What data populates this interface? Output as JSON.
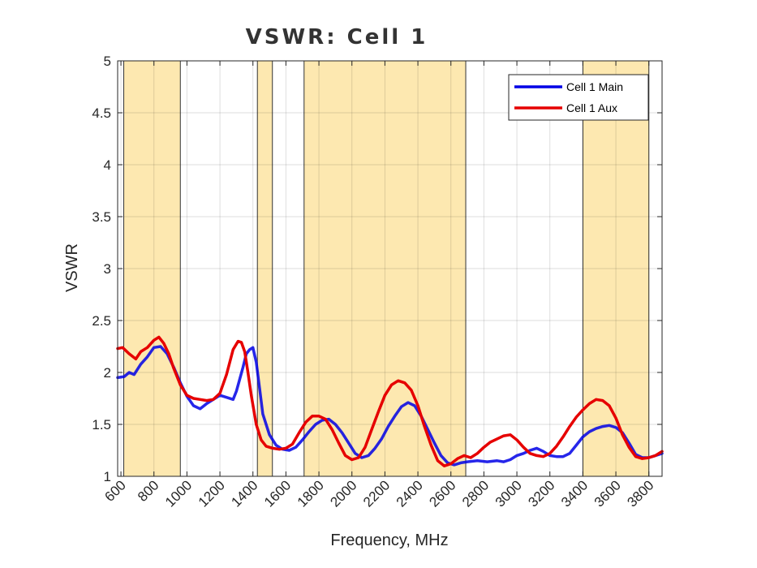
{
  "chart_data": {
    "type": "line",
    "title": "VSWR: Cell 1",
    "xlabel": "Frequency, MHz",
    "ylabel": "VSWR",
    "xlim": [
      580,
      3880
    ],
    "ylim": [
      1,
      5
    ],
    "xticks": [
      600,
      800,
      1000,
      1200,
      1400,
      1600,
      1800,
      2000,
      2200,
      2400,
      2600,
      2800,
      3000,
      3200,
      3400,
      3600,
      3800
    ],
    "yticks": [
      1,
      1.5,
      2,
      2.5,
      3,
      3.5,
      4,
      4.5,
      5
    ],
    "ytick_labels": [
      "1",
      "1.5",
      "2",
      "2.5",
      "3",
      "3.5",
      "4",
      "4.5",
      "5"
    ],
    "grid": true,
    "legend_position": "top-right",
    "bands_mhz": [
      [
        617,
        960
      ],
      [
        1427,
        1518
      ],
      [
        1710,
        2690
      ],
      [
        3400,
        3800
      ]
    ],
    "band_color": "#fde8b0",
    "series": [
      {
        "name": "Cell 1 Main",
        "color": "#0000e6",
        "x": [
          580,
          620,
          650,
          680,
          720,
          760,
          800,
          840,
          880,
          920,
          960,
          1000,
          1040,
          1080,
          1120,
          1160,
          1200,
          1240,
          1280,
          1300,
          1340,
          1360,
          1380,
          1400,
          1420,
          1440,
          1460,
          1500,
          1540,
          1580,
          1620,
          1660,
          1700,
          1740,
          1780,
          1820,
          1860,
          1900,
          1940,
          1980,
          2020,
          2060,
          2100,
          2140,
          2180,
          2220,
          2260,
          2300,
          2340,
          2380,
          2420,
          2460,
          2500,
          2540,
          2580,
          2620,
          2660,
          2700,
          2760,
          2820,
          2880,
          2920,
          2960,
          3000,
          3040,
          3080,
          3120,
          3160,
          3200,
          3240,
          3280,
          3320,
          3360,
          3400,
          3440,
          3480,
          3520,
          3560,
          3600,
          3640,
          3680,
          3720,
          3760,
          3800,
          3840,
          3880
        ],
        "values": [
          1.95,
          1.96,
          2.0,
          1.98,
          2.08,
          2.15,
          2.24,
          2.25,
          2.18,
          2.05,
          1.9,
          1.77,
          1.68,
          1.65,
          1.7,
          1.74,
          1.78,
          1.76,
          1.74,
          1.82,
          2.05,
          2.18,
          2.22,
          2.24,
          2.1,
          1.85,
          1.6,
          1.4,
          1.3,
          1.26,
          1.25,
          1.28,
          1.35,
          1.43,
          1.5,
          1.54,
          1.55,
          1.5,
          1.42,
          1.32,
          1.22,
          1.18,
          1.2,
          1.27,
          1.36,
          1.48,
          1.58,
          1.67,
          1.71,
          1.68,
          1.58,
          1.45,
          1.32,
          1.2,
          1.13,
          1.11,
          1.13,
          1.14,
          1.15,
          1.14,
          1.15,
          1.14,
          1.16,
          1.2,
          1.22,
          1.25,
          1.27,
          1.24,
          1.2,
          1.19,
          1.19,
          1.22,
          1.3,
          1.38,
          1.43,
          1.46,
          1.48,
          1.49,
          1.47,
          1.42,
          1.32,
          1.21,
          1.18,
          1.18,
          1.2,
          1.22
        ]
      },
      {
        "name": "Cell 1 Aux",
        "color": "#e60000",
        "x": [
          580,
          610,
          650,
          690,
          720,
          760,
          800,
          830,
          860,
          890,
          920,
          960,
          1000,
          1040,
          1080,
          1120,
          1160,
          1200,
          1240,
          1280,
          1310,
          1330,
          1350,
          1370,
          1390,
          1420,
          1450,
          1480,
          1520,
          1560,
          1600,
          1640,
          1680,
          1720,
          1760,
          1800,
          1840,
          1880,
          1920,
          1960,
          2000,
          2040,
          2080,
          2120,
          2160,
          2200,
          2240,
          2280,
          2320,
          2360,
          2400,
          2440,
          2480,
          2520,
          2560,
          2600,
          2640,
          2680,
          2720,
          2760,
          2800,
          2840,
          2880,
          2920,
          2960,
          3000,
          3040,
          3080,
          3120,
          3160,
          3200,
          3240,
          3280,
          3320,
          3360,
          3400,
          3440,
          3480,
          3520,
          3560,
          3600,
          3640,
          3680,
          3720,
          3760,
          3800,
          3840,
          3880
        ],
        "values": [
          2.23,
          2.24,
          2.18,
          2.13,
          2.2,
          2.24,
          2.31,
          2.34,
          2.28,
          2.18,
          2.04,
          1.88,
          1.78,
          1.75,
          1.74,
          1.73,
          1.74,
          1.8,
          1.98,
          2.22,
          2.3,
          2.29,
          2.2,
          2.0,
          1.78,
          1.5,
          1.35,
          1.29,
          1.27,
          1.26,
          1.27,
          1.31,
          1.42,
          1.52,
          1.58,
          1.58,
          1.55,
          1.45,
          1.32,
          1.2,
          1.16,
          1.18,
          1.28,
          1.45,
          1.62,
          1.78,
          1.88,
          1.92,
          1.9,
          1.83,
          1.68,
          1.48,
          1.3,
          1.15,
          1.1,
          1.12,
          1.17,
          1.2,
          1.18,
          1.22,
          1.28,
          1.33,
          1.36,
          1.39,
          1.4,
          1.35,
          1.28,
          1.22,
          1.2,
          1.19,
          1.22,
          1.29,
          1.38,
          1.48,
          1.57,
          1.64,
          1.7,
          1.74,
          1.73,
          1.68,
          1.56,
          1.4,
          1.28,
          1.19,
          1.17,
          1.18,
          1.2,
          1.24
        ]
      }
    ]
  }
}
